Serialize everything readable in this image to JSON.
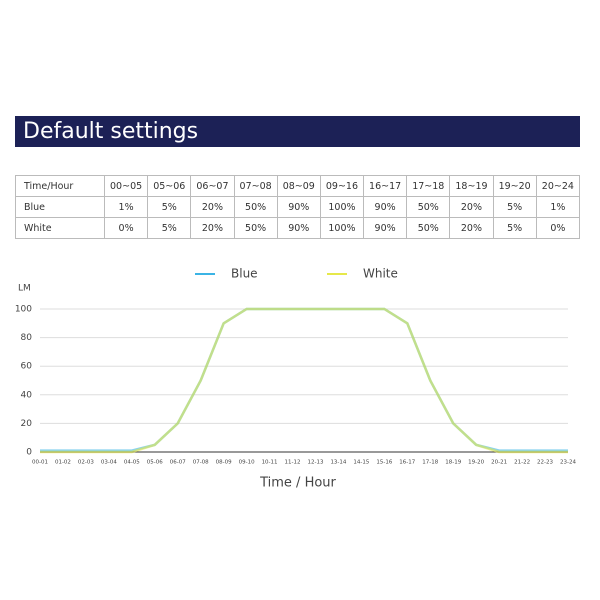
{
  "header": {
    "title": "Default settings"
  },
  "table": {
    "rows": [
      [
        "Time/Hour",
        "00~05",
        "05~06",
        "06~07",
        "07~08",
        "08~09",
        "09~16",
        "16~17",
        "17~18",
        "18~19",
        "19~20",
        "20~24"
      ],
      [
        "Blue",
        "1%",
        "5%",
        "20%",
        "50%",
        "90%",
        "100%",
        "90%",
        "50%",
        "20%",
        "5%",
        "1%"
      ],
      [
        "White",
        "0%",
        "5%",
        "20%",
        "50%",
        "90%",
        "100%",
        "90%",
        "50%",
        "20%",
        "5%",
        "0%"
      ]
    ]
  },
  "chart_data": {
    "type": "line",
    "y_label": "LM",
    "x_label": "Time / Hour",
    "categories": [
      "00-01",
      "01-02",
      "02-03",
      "03-04",
      "04-05",
      "05-06",
      "06-07",
      "07-08",
      "08-09",
      "09-10",
      "10-11",
      "11-12",
      "12-13",
      "13-14",
      "14-15",
      "15-16",
      "16-17",
      "17-18",
      "18-19",
      "19-20",
      "20-21",
      "21-22",
      "22-23",
      "23-24"
    ],
    "series": [
      {
        "name": "Blue",
        "color": "#3bb4e5",
        "values": [
          1,
          1,
          1,
          1,
          1,
          5,
          20,
          50,
          90,
          100,
          100,
          100,
          100,
          100,
          100,
          100,
          90,
          50,
          20,
          5,
          1,
          1,
          1,
          1
        ]
      },
      {
        "name": "White",
        "color": "#e6e84a",
        "values": [
          0,
          0,
          0,
          0,
          0,
          5,
          20,
          50,
          90,
          100,
          100,
          100,
          100,
          100,
          100,
          100,
          90,
          50,
          20,
          5,
          0,
          0,
          0,
          0
        ]
      }
    ],
    "ylim": [
      0,
      100
    ],
    "yticks": [
      0,
      20,
      40,
      60,
      80,
      100
    ],
    "grid": true,
    "legend": "top"
  }
}
